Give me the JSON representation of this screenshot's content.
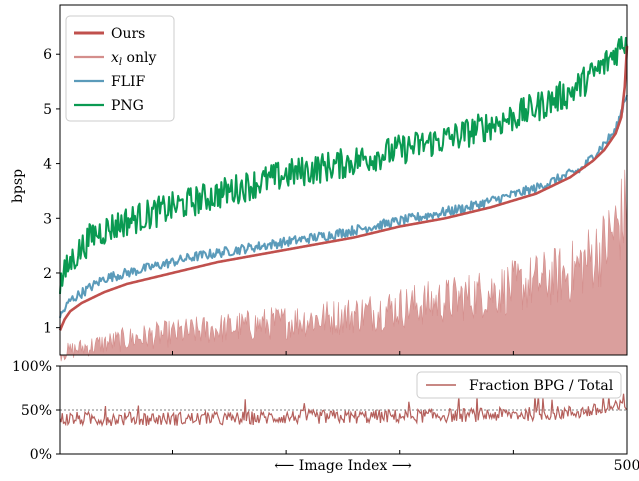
{
  "chart_data": [
    {
      "type": "line",
      "ylabel": "bpsp",
      "ylim": [
        0.5,
        6.9
      ],
      "xlim": [
        1,
        500
      ],
      "yticks": [
        1,
        2,
        3,
        4,
        5,
        6
      ],
      "grid": false,
      "legend_position": "top-left",
      "series": [
        {
          "name": "Ours",
          "color": "#c0504d",
          "x": [
            1,
            5,
            10,
            20,
            40,
            60,
            80,
            100,
            140,
            180,
            220,
            260,
            300,
            340,
            380,
            420,
            450,
            470,
            480,
            490,
            495,
            498,
            500
          ],
          "values": [
            0.95,
            1.15,
            1.3,
            1.45,
            1.65,
            1.8,
            1.9,
            2.0,
            2.2,
            2.35,
            2.5,
            2.65,
            2.85,
            3.0,
            3.2,
            3.45,
            3.75,
            4.05,
            4.25,
            4.55,
            4.85,
            5.4,
            6.15
          ]
        },
        {
          "name": "x_l only",
          "color": "#d48e8c",
          "x": [
            1,
            20,
            60,
            100,
            150,
            200,
            250,
            300,
            350,
            400,
            450,
            480,
            500
          ],
          "values": [
            0.5,
            0.6,
            0.75,
            0.85,
            0.95,
            1.05,
            1.15,
            1.3,
            1.45,
            1.65,
            1.9,
            2.35,
            3.0
          ]
        },
        {
          "name": "FLIF",
          "color": "#5b9bba",
          "x": [
            1,
            10,
            40,
            80,
            120,
            180,
            240,
            300,
            360,
            420,
            460,
            490,
            500
          ],
          "values": [
            1.2,
            1.5,
            1.9,
            2.1,
            2.3,
            2.5,
            2.7,
            2.95,
            3.2,
            3.55,
            3.9,
            4.6,
            5.3
          ]
        },
        {
          "name": "PNG",
          "color": "#0a9a52",
          "x": [
            1,
            10,
            30,
            60,
            100,
            150,
            200,
            250,
            300,
            350,
            400,
            450,
            480,
            500
          ],
          "values": [
            1.8,
            2.2,
            2.7,
            2.95,
            3.2,
            3.5,
            3.8,
            4.0,
            4.25,
            4.5,
            4.85,
            5.3,
            5.8,
            6.3
          ]
        }
      ]
    },
    {
      "type": "line",
      "xlabel": "⟵ Image Index ⟶",
      "xlim": [
        1,
        500
      ],
      "xtick_labels": [
        "500"
      ],
      "ylim": [
        0,
        100
      ],
      "ytick_labels": [
        "0%",
        "50%",
        "100%"
      ],
      "reference_line": 50,
      "legend_position": "top-right",
      "series": [
        {
          "name": "Fraction BPG / Total",
          "color": "#b5605c",
          "x": [
            1,
            50,
            100,
            150,
            200,
            250,
            300,
            350,
            400,
            450,
            480,
            500
          ],
          "values": [
            40,
            40,
            40,
            40,
            42,
            42,
            43,
            44,
            45,
            47,
            50,
            55
          ]
        }
      ]
    }
  ]
}
